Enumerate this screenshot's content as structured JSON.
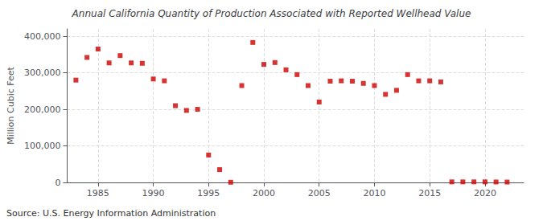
{
  "chart_data": {
    "type": "scatter",
    "title": "Annual California Quantity of Production Associated with Reported Wellhead Value",
    "ylabel": "Million Cubic Feet",
    "annotations": [
      "Source: U.S. Energy Information Administration"
    ],
    "x": [
      1983,
      1984,
      1985,
      1986,
      1987,
      1988,
      1989,
      1990,
      1991,
      1992,
      1993,
      1994,
      1995,
      1996,
      1997,
      1998,
      1999,
      2000,
      2001,
      2002,
      2003,
      2004,
      2005,
      2006,
      2007,
      2008,
      2009,
      2010,
      2011,
      2012,
      2013,
      2014,
      2015,
      2016,
      2017,
      2018,
      2019,
      2020,
      2021,
      2022
    ],
    "values": [
      280000,
      342000,
      365000,
      327000,
      347000,
      327000,
      326000,
      283000,
      278000,
      210000,
      197000,
      200000,
      75000,
      35000,
      500,
      265000,
      383000,
      323000,
      328000,
      308000,
      295000,
      265000,
      220000,
      277000,
      278000,
      277000,
      271000,
      265000,
      241000,
      252000,
      295000,
      278000,
      278000,
      275000,
      1500,
      1500,
      1500,
      1500,
      1200,
      1000
    ],
    "color": "#cc0000",
    "marker": "square",
    "xlim": [
      1982.2,
      2023.5
    ],
    "xticks": [
      1985,
      1990,
      1995,
      2000,
      2005,
      2010,
      2015,
      2020
    ],
    "ylim": [
      0,
      420000
    ],
    "yticks": [
      0,
      {
        "value": 100000,
        "label": "100,000"
      },
      {
        "value": 200000,
        "label": "200,000"
      },
      {
        "value": 300000,
        "label": "300,000"
      },
      {
        "value": 400000,
        "label": "400,000"
      }
    ],
    "grid": true
  }
}
